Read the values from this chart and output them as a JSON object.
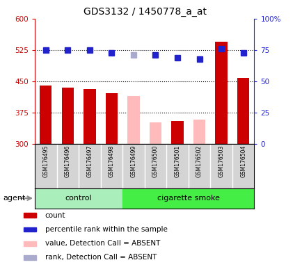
{
  "title": "GDS3132 / 1450778_a_at",
  "samples": [
    "GSM176495",
    "GSM176496",
    "GSM176497",
    "GSM176498",
    "GSM176499",
    "GSM176500",
    "GSM176501",
    "GSM176502",
    "GSM176503",
    "GSM176504"
  ],
  "bar_values": [
    440,
    435,
    432,
    422,
    415,
    352,
    355,
    358,
    545,
    458
  ],
  "bar_colors": [
    "#cc0000",
    "#cc0000",
    "#cc0000",
    "#cc0000",
    "#ffbbbb",
    "#ffbbbb",
    "#cc0000",
    "#ffbbbb",
    "#cc0000",
    "#cc0000"
  ],
  "rank_values": [
    75,
    75,
    75,
    73,
    71,
    71,
    69,
    68,
    76,
    73
  ],
  "rank_colors": [
    "#2222cc",
    "#2222cc",
    "#2222cc",
    "#2222cc",
    "#aaaacc",
    "#2222cc",
    "#2222cc",
    "#2222cc",
    "#2222cc",
    "#2222cc"
  ],
  "groups": [
    {
      "label": "control",
      "start": 0,
      "end": 4,
      "color": "#aaeebb"
    },
    {
      "label": "cigarette smoke",
      "start": 4,
      "end": 10,
      "color": "#44ee44"
    }
  ],
  "ylim_left": [
    300,
    600
  ],
  "ylim_right": [
    0,
    100
  ],
  "yticks_left": [
    300,
    375,
    450,
    525,
    600
  ],
  "ytick_labels_left": [
    "300",
    "375",
    "450",
    "525",
    "600"
  ],
  "yticks_right": [
    0,
    25,
    50,
    75,
    100
  ],
  "ytick_labels_right": [
    "0",
    "25",
    "50",
    "75",
    "100%"
  ],
  "hlines": [
    375,
    450,
    525
  ],
  "left_axis_color": "#cc0000",
  "right_axis_color": "#2222cc",
  "background_color": "#ffffff",
  "legend_items": [
    {
      "label": "count",
      "color": "#cc0000"
    },
    {
      "label": "percentile rank within the sample",
      "color": "#2222cc"
    },
    {
      "label": "value, Detection Call = ABSENT",
      "color": "#ffbbbb"
    },
    {
      "label": "rank, Detection Call = ABSENT",
      "color": "#aaaacc"
    }
  ],
  "agent_label": "agent",
  "bar_width": 0.55,
  "rank_marker_size": 6
}
